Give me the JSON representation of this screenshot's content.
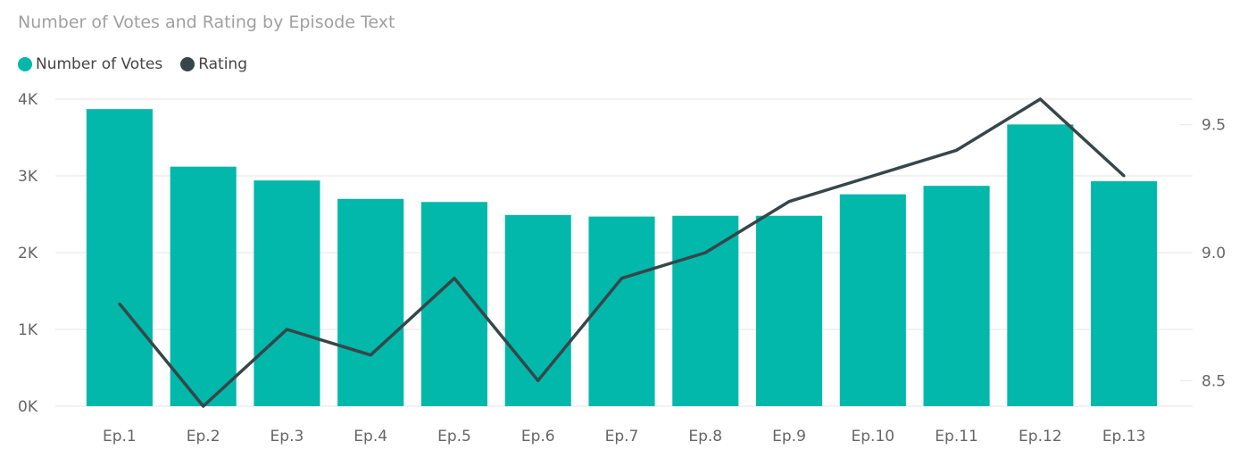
{
  "title": "Number of Votes and Rating by Episode Text",
  "colors": {
    "votes": "#01B8AA",
    "rating": "#374649",
    "grid": "#e6e6e6",
    "tick": "#666666"
  },
  "chart_data": {
    "type": "bar",
    "title": "Number of Votes and Rating by Episode Text",
    "categories": [
      "Ep.1",
      "Ep.2",
      "Ep.3",
      "Ep.4",
      "Ep.5",
      "Ep.6",
      "Ep.7",
      "Ep.8",
      "Ep.9",
      "Ep.10",
      "Ep.11",
      "Ep.12",
      "Ep.13"
    ],
    "series": [
      {
        "name": "Number of Votes",
        "type": "bar",
        "axis": "left",
        "values": [
          3870,
          3120,
          2940,
          2700,
          2660,
          2490,
          2470,
          2480,
          2480,
          2760,
          2870,
          3670,
          2930
        ]
      },
      {
        "name": "Rating",
        "type": "line",
        "axis": "right",
        "values": [
          8.8,
          8.4,
          8.7,
          8.6,
          8.9,
          8.5,
          8.9,
          9.0,
          9.2,
          9.3,
          9.4,
          9.6,
          9.3
        ]
      }
    ],
    "y_left": {
      "range": [
        0,
        4000
      ],
      "ticks": [
        0,
        1000,
        2000,
        3000,
        4000
      ],
      "tick_labels": [
        "0K",
        "1K",
        "2K",
        "3K",
        "4K"
      ]
    },
    "y_right": {
      "range": [
        8.4,
        9.6
      ],
      "ticks": [
        8.5,
        9.0,
        9.5
      ],
      "tick_labels": [
        "8.5",
        "9.0",
        "9.5"
      ]
    },
    "grid": true,
    "legend": "top-left"
  }
}
